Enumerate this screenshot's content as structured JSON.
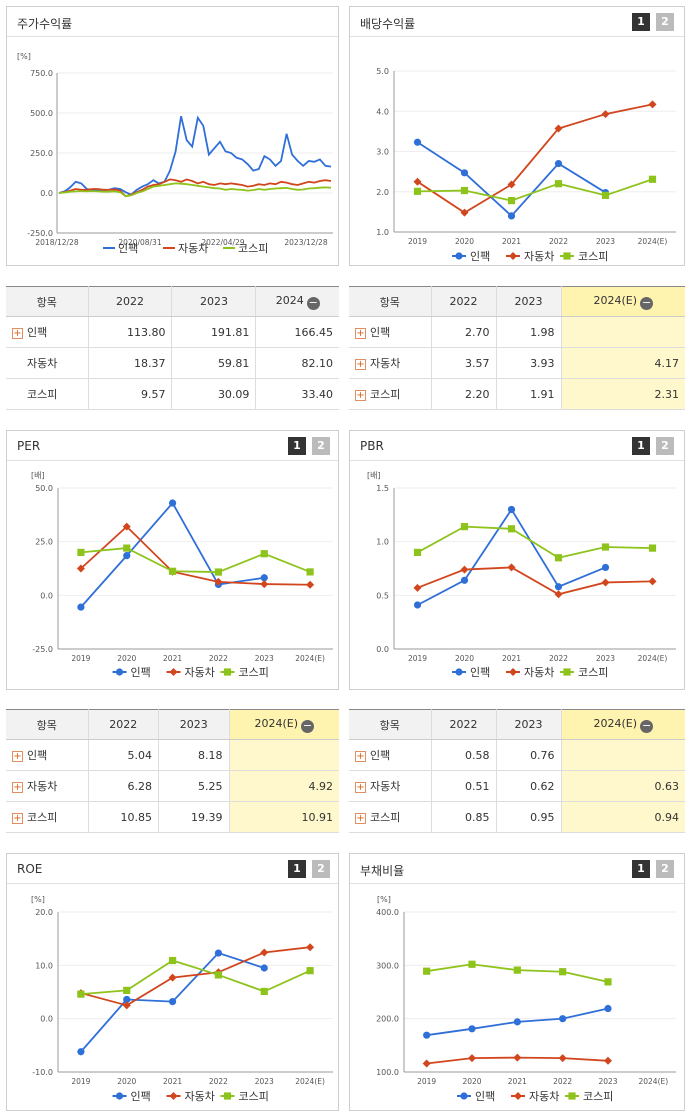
{
  "colors": {
    "insight": "#2f6fd8",
    "auto": "#d2461e",
    "kospi": "#8ec31c"
  },
  "panels": {
    "stock_return": {
      "title": "주가수익률",
      "unit": "[%]",
      "chart_data": {
        "type": "line",
        "yticks": [
          "750.0",
          "500.0",
          "250.0",
          "0.0",
          "-250.0"
        ],
        "ylim": [
          -250,
          750
        ],
        "xticks": [
          "2018/12/28",
          "2020/08/31",
          "2022/04/29",
          "2023/12/28"
        ],
        "series": [
          {
            "name": "인팩",
            "values": [
              0,
              10,
              35,
              70,
              60,
              25,
              20,
              15,
              15,
              20,
              30,
              25,
              5,
              -10,
              20,
              40,
              55,
              80,
              60,
              70,
              140,
              260,
              480,
              330,
              290,
              470,
              420,
              240,
              280,
              320,
              260,
              250,
              220,
              210,
              180,
              140,
              150,
              230,
              210,
              170,
              200,
              370,
              240,
              200,
              170,
              200,
              195,
              210,
              170,
              165
            ]
          },
          {
            "name": "자동차",
            "values": [
              0,
              5,
              15,
              25,
              20,
              20,
              25,
              25,
              20,
              20,
              22,
              15,
              -20,
              -10,
              5,
              20,
              40,
              50,
              55,
              70,
              85,
              80,
              70,
              85,
              75,
              60,
              70,
              55,
              50,
              60,
              55,
              60,
              55,
              50,
              40,
              45,
              55,
              50,
              60,
              55,
              70,
              65,
              55,
              50,
              60,
              70,
              65,
              75,
              80,
              75
            ]
          },
          {
            "name": "코스피",
            "values": [
              0,
              3,
              8,
              10,
              12,
              10,
              12,
              10,
              8,
              8,
              10,
              5,
              -20,
              -15,
              0,
              10,
              25,
              40,
              45,
              50,
              55,
              60,
              58,
              55,
              50,
              45,
              40,
              35,
              30,
              28,
              20,
              25,
              22,
              20,
              15,
              18,
              25,
              20,
              25,
              28,
              30,
              32,
              25,
              20,
              22,
              28,
              30,
              33,
              35,
              33
            ]
          }
        ]
      },
      "legend": [
        "인팩",
        "자동차",
        "코스피"
      ]
    },
    "dividend": {
      "title": "배당수익률",
      "btn1": "1",
      "btn2": "2",
      "chart_data": {
        "type": "line",
        "yticks": [
          "5.0",
          "4.0",
          "3.0",
          "2.0",
          "1.0"
        ],
        "ylim": [
          1,
          5
        ],
        "categories": [
          "2019",
          "2020",
          "2021",
          "2022",
          "2023",
          "2024(E)"
        ],
        "series": [
          {
            "name": "인팩",
            "values": [
              3.23,
              2.47,
              1.4,
              2.7,
              1.98,
              null
            ]
          },
          {
            "name": "자동차",
            "values": [
              2.25,
              1.48,
              2.18,
              3.57,
              3.93,
              4.17
            ]
          },
          {
            "name": "코스피",
            "values": [
              2.01,
              2.03,
              1.78,
              2.2,
              1.91,
              2.31
            ]
          }
        ]
      },
      "legend": [
        "인팩",
        "자동차",
        "코스피"
      ]
    },
    "per": {
      "title": "PER",
      "btn1": "1",
      "btn2": "2",
      "unit": "[배]",
      "chart_data": {
        "type": "line",
        "yticks": [
          "50.0",
          "25.0",
          "0.0",
          "-25.0"
        ],
        "ylim": [
          -25,
          50
        ],
        "categories": [
          "2019",
          "2020",
          "2021",
          "2022",
          "2023",
          "2024(E)"
        ],
        "series": [
          {
            "name": "인팩",
            "values": [
              -5.5,
              18.5,
              43.0,
              5.04,
              8.18,
              null
            ]
          },
          {
            "name": "자동차",
            "values": [
              12.5,
              32.0,
              11.0,
              6.28,
              5.25,
              4.92
            ]
          },
          {
            "name": "코스피",
            "values": [
              20.0,
              22.0,
              11.2,
              10.85,
              19.39,
              10.91
            ]
          }
        ]
      },
      "legend": [
        "인팩",
        "자동차",
        "코스피"
      ]
    },
    "pbr": {
      "title": "PBR",
      "btn1": "1",
      "btn2": "2",
      "unit": "[배]",
      "chart_data": {
        "type": "line",
        "yticks": [
          "1.5",
          "1.0",
          "0.5",
          "0.0"
        ],
        "ylim": [
          0,
          1.5
        ],
        "categories": [
          "2019",
          "2020",
          "2021",
          "2022",
          "2023",
          "2024(E)"
        ],
        "series": [
          {
            "name": "인팩",
            "values": [
              0.41,
              0.64,
              1.3,
              0.58,
              0.76,
              null
            ]
          },
          {
            "name": "자동차",
            "values": [
              0.57,
              0.74,
              0.76,
              0.51,
              0.62,
              0.63
            ]
          },
          {
            "name": "코스피",
            "values": [
              0.9,
              1.14,
              1.12,
              0.85,
              0.95,
              0.94
            ]
          }
        ]
      },
      "legend": [
        "인팩",
        "자동차",
        "코스피"
      ]
    },
    "roe": {
      "title": "ROE",
      "btn1": "1",
      "btn2": "2",
      "unit": "[%]",
      "chart_data": {
        "type": "line",
        "yticks": [
          "20.0",
          "10.0",
          "0.0",
          "-10.0"
        ],
        "ylim": [
          -10,
          20
        ],
        "categories": [
          "2019",
          "2020",
          "2021",
          "2022",
          "2023",
          "2024(E)"
        ],
        "series": [
          {
            "name": "인팩",
            "values": [
              -6.2,
              3.6,
              3.2,
              12.3,
              9.5,
              null
            ]
          },
          {
            "name": "자동차",
            "values": [
              4.8,
              2.5,
              7.7,
              8.7,
              12.4,
              13.4
            ]
          },
          {
            "name": "코스피",
            "values": [
              4.6,
              5.3,
              10.9,
              8.2,
              5.1,
              9.0
            ]
          }
        ]
      },
      "legend": [
        "인팩",
        "자동차",
        "코스피"
      ]
    },
    "debt": {
      "title": "부채비율",
      "btn1": "1",
      "btn2": "2",
      "unit": "[%]",
      "chart_data": {
        "type": "line",
        "yticks": [
          "400.0",
          "300.0",
          "200.0",
          "100.0"
        ],
        "ylim": [
          100,
          400
        ],
        "categories": [
          "2019",
          "2020",
          "2021",
          "2022",
          "2023",
          "2024(E)"
        ],
        "series": [
          {
            "name": "인팩",
            "values": [
              169,
              181,
              194,
              200,
              219,
              null
            ]
          },
          {
            "name": "자동차",
            "values": [
              116,
              126,
              127,
              126,
              121,
              null
            ]
          },
          {
            "name": "코스피",
            "values": [
              289,
              302,
              291,
              288,
              269,
              null
            ]
          }
        ]
      },
      "legend": [
        "인팩",
        "자동차",
        "코스피"
      ]
    }
  },
  "tables": {
    "stock_return": {
      "header": [
        "항목",
        "2022",
        "2023",
        "2024"
      ],
      "rows": [
        {
          "label": "인팩",
          "plus": true,
          "values": [
            "113.80",
            "191.81",
            "166.45"
          ]
        },
        {
          "label": "자동차",
          "plus": false,
          "values": [
            "18.37",
            "59.81",
            "82.10"
          ]
        },
        {
          "label": "코스피",
          "plus": false,
          "values": [
            "9.57",
            "30.09",
            "33.40"
          ]
        }
      ]
    },
    "dividend": {
      "header": [
        "항목",
        "2022",
        "2023",
        "2024(E)"
      ],
      "rows": [
        {
          "label": "인팩",
          "plus": true,
          "values": [
            "2.70",
            "1.98",
            ""
          ]
        },
        {
          "label": "자동차",
          "plus": true,
          "values": [
            "3.57",
            "3.93",
            "4.17"
          ]
        },
        {
          "label": "코스피",
          "plus": true,
          "values": [
            "2.20",
            "1.91",
            "2.31"
          ]
        }
      ]
    },
    "per": {
      "header": [
        "항목",
        "2022",
        "2023",
        "2024(E)"
      ],
      "rows": [
        {
          "label": "인팩",
          "plus": true,
          "values": [
            "5.04",
            "8.18",
            ""
          ]
        },
        {
          "label": "자동차",
          "plus": true,
          "values": [
            "6.28",
            "5.25",
            "4.92"
          ]
        },
        {
          "label": "코스피",
          "plus": true,
          "values": [
            "10.85",
            "19.39",
            "10.91"
          ]
        }
      ]
    },
    "pbr": {
      "header": [
        "항목",
        "2022",
        "2023",
        "2024(E)"
      ],
      "rows": [
        {
          "label": "인팩",
          "plus": true,
          "values": [
            "0.58",
            "0.76",
            ""
          ]
        },
        {
          "label": "자동차",
          "plus": true,
          "values": [
            "0.51",
            "0.62",
            "0.63"
          ]
        },
        {
          "label": "코스피",
          "plus": true,
          "values": [
            "0.85",
            "0.95",
            "0.94"
          ]
        }
      ]
    }
  }
}
